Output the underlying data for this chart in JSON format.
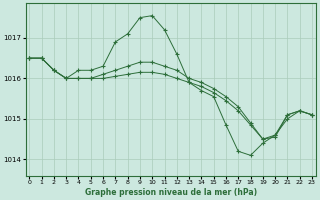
{
  "title": "Graphe pression niveau de la mer (hPa)",
  "background_color": "#cce8df",
  "plot_bg_color": "#cce8df",
  "grid_color": "#aaccbb",
  "line_color": "#2d6e3a",
  "marker": "+",
  "xlim": [
    -0.3,
    23.3
  ],
  "ylim": [
    1013.6,
    1017.85
  ],
  "xticks": [
    0,
    1,
    2,
    3,
    4,
    5,
    6,
    7,
    8,
    9,
    10,
    11,
    12,
    13,
    14,
    15,
    16,
    17,
    18,
    19,
    20,
    21,
    22,
    23
  ],
  "yticks": [
    1014,
    1015,
    1016,
    1017
  ],
  "series": [
    [
      1016.5,
      1016.5,
      1016.2,
      1016.0,
      1016.2,
      1016.2,
      1016.3,
      1016.9,
      1017.1,
      1017.5,
      1017.55,
      1017.2,
      1016.6,
      1015.9,
      1015.7,
      1015.55,
      1014.85,
      1014.2,
      1014.1,
      1014.4,
      1014.6,
      1015.0,
      1015.2,
      1015.1
    ],
    [
      1016.5,
      1016.5,
      1016.2,
      1016.0,
      1016.0,
      1016.0,
      1016.1,
      1016.2,
      1016.3,
      1016.4,
      1016.4,
      1016.3,
      1016.2,
      1016.0,
      1015.9,
      1015.75,
      1015.55,
      1015.3,
      1014.9,
      1014.5,
      1014.6,
      1015.1,
      1015.2,
      1015.1
    ],
    [
      1016.5,
      1016.5,
      1016.2,
      1016.0,
      1016.0,
      1016.0,
      1016.0,
      1016.05,
      1016.1,
      1016.15,
      1016.15,
      1016.1,
      1016.0,
      1015.9,
      1015.8,
      1015.65,
      1015.45,
      1015.2,
      1014.85,
      1014.5,
      1014.55,
      1015.1,
      1015.2,
      1015.1
    ]
  ]
}
